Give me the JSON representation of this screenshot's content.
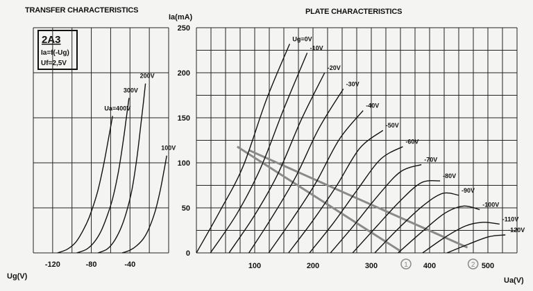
{
  "chart_data": [
    {
      "type": "line",
      "title": "TRANSFER CHARACTERISTICS",
      "xlabel": "Ug(V)",
      "ylabel": "",
      "xlim": [
        -140,
        0
      ],
      "ylim": [
        0,
        250
      ],
      "x_tick_labels": [
        "-120",
        "-80",
        "-40"
      ],
      "grid": true,
      "legend_box": {
        "tube": "2A3",
        "line1": "Ia=f(-Ug)",
        "line2": "Uf=2,5V"
      },
      "series": [
        {
          "name": "Ua=400V",
          "x": [
            -115,
            -105,
            -96,
            -88,
            -82,
            -74,
            -68,
            -62,
            -58
          ],
          "y": [
            0,
            4,
            12,
            26,
            40,
            66,
            94,
            128,
            152
          ]
        },
        {
          "name": "300V",
          "x": [
            -95,
            -85,
            -77,
            -70,
            -64,
            -58,
            -52,
            -47,
            -44,
            -41
          ],
          "y": [
            0,
            4,
            12,
            24,
            40,
            60,
            90,
            124,
            148,
            172
          ]
        },
        {
          "name": "200V",
          "x": [
            -73,
            -64,
            -57,
            -50,
            -44,
            -38,
            -33,
            -29,
            -26,
            -24
          ],
          "y": [
            0,
            4,
            12,
            26,
            44,
            70,
            104,
            140,
            168,
            188
          ]
        },
        {
          "name": "100V",
          "x": [
            -48,
            -40,
            -33,
            -26,
            -20,
            -14,
            -9,
            -5,
            -2
          ],
          "y": [
            0,
            3,
            8,
            16,
            28,
            46,
            68,
            90,
            108
          ]
        }
      ]
    },
    {
      "type": "line",
      "title": "PLATE CHARACTERISTICS",
      "xlabel": "Ua(V)",
      "ylabel": "Ia(mA)",
      "xlim": [
        0,
        550
      ],
      "ylim": [
        0,
        250
      ],
      "x_ticks": [
        100,
        200,
        300,
        400,
        500
      ],
      "y_ticks": [
        0,
        50,
        100,
        150,
        200,
        250
      ],
      "grid": true,
      "series": [
        {
          "name": "Ug=0V",
          "x": [
            0,
            40,
            80,
            120,
            160
          ],
          "y": [
            0,
            46,
            96,
            170,
            232
          ]
        },
        {
          "name": "-10V",
          "x": [
            24,
            70,
            110,
            150,
            190
          ],
          "y": [
            0,
            44,
            94,
            160,
            222
          ]
        },
        {
          "name": "-20V",
          "x": [
            56,
            100,
            140,
            180,
            220
          ],
          "y": [
            0,
            42,
            88,
            148,
            200
          ]
        },
        {
          "name": "-30V",
          "x": [
            90,
            130,
            170,
            210,
            252
          ],
          "y": [
            0,
            40,
            84,
            138,
            182
          ]
        },
        {
          "name": "-40V",
          "x": [
            124,
            165,
            205,
            245,
            286
          ],
          "y": [
            0,
            38,
            78,
            126,
            158
          ]
        },
        {
          "name": "-50V",
          "x": [
            158,
            200,
            240,
            280,
            320
          ],
          "y": [
            0,
            36,
            74,
            116,
            136
          ]
        },
        {
          "name": "-60V",
          "x": [
            194,
            236,
            276,
            316,
            354
          ],
          "y": [
            0,
            34,
            70,
            104,
            118
          ]
        },
        {
          "name": "-70V",
          "x": [
            230,
            272,
            312,
            350,
            386
          ],
          "y": [
            0,
            32,
            64,
            90,
            98
          ]
        },
        {
          "name": "-80V",
          "x": [
            268,
            310,
            350,
            386,
            418
          ],
          "y": [
            0,
            30,
            58,
            78,
            80
          ]
        },
        {
          "name": "-90V",
          "x": [
            306,
            348,
            388,
            422,
            450
          ],
          "y": [
            0,
            28,
            52,
            66,
            64
          ]
        },
        {
          "name": "-100V",
          "x": [
            346,
            388,
            426,
            458,
            486
          ],
          "y": [
            0,
            24,
            44,
            52,
            48
          ]
        },
        {
          "name": "-110V",
          "x": [
            388,
            428,
            462,
            492,
            520
          ],
          "y": [
            0,
            18,
            30,
            34,
            32
          ]
        },
        {
          "name": "-120V",
          "x": [
            430,
            468,
            502,
            530
          ],
          "y": [
            0,
            10,
            18,
            20
          ]
        }
      ],
      "load_lines": [
        {
          "label": "1",
          "x": [
            70,
            350
          ],
          "y": [
            118,
            2
          ],
          "color": "#8a8a8a"
        },
        {
          "label": "2",
          "x": [
            90,
            465
          ],
          "y": [
            114,
            6
          ],
          "color": "#8a8a8a"
        }
      ]
    }
  ]
}
